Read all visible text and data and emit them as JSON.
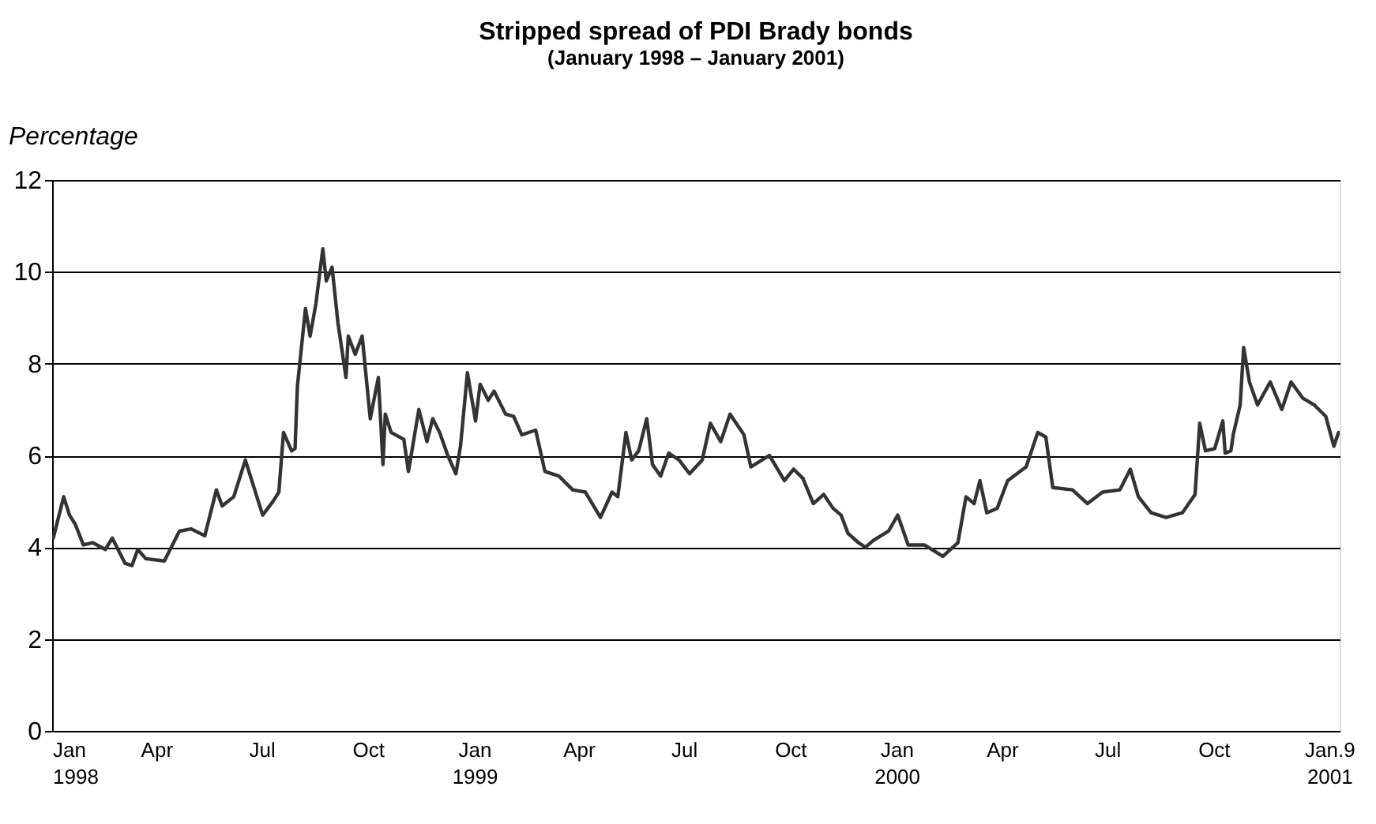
{
  "chart_data": {
    "type": "line",
    "title": "Stripped spread of PDI Brady bonds",
    "subtitle": "(January 1998 – January 2001)",
    "ylabel": "Percentage",
    "x": [
      "1998-01-02",
      "1998-01-11",
      "1998-01-16",
      "1998-01-21",
      "1998-01-28",
      "1998-02-05",
      "1998-02-16",
      "1998-02-22",
      "1998-03-05",
      "1998-03-11",
      "1998-03-16",
      "1998-03-23",
      "1998-04-08",
      "1998-04-21",
      "1998-05-01",
      "1998-05-13",
      "1998-05-23",
      "1998-05-28",
      "1998-06-07",
      "1998-06-17",
      "1998-07-02",
      "1998-07-11",
      "1998-07-16",
      "1998-07-20",
      "1998-07-27",
      "1998-07-30",
      "1998-08-01",
      "1998-08-08",
      "1998-08-12",
      "1998-08-17",
      "1998-08-23",
      "1998-08-26",
      "1998-08-31",
      "1998-09-05",
      "1998-09-12",
      "1998-09-14",
      "1998-09-20",
      "1998-09-26",
      "1998-10-03",
      "1998-10-10",
      "1998-10-14",
      "1998-10-16",
      "1998-10-21",
      "1998-11-01",
      "1998-11-05",
      "1998-11-14",
      "1998-11-21",
      "1998-11-26",
      "1998-12-02",
      "1998-12-09",
      "1998-12-16",
      "1998-12-20",
      "1998-12-26",
      "1999-01-02",
      "1999-01-06",
      "1999-01-13",
      "1999-01-18",
      "1999-01-28",
      "1999-02-04",
      "1999-02-11",
      "1999-02-23",
      "1999-03-03",
      "1999-03-15",
      "1999-03-27",
      "1999-04-07",
      "1999-04-20",
      "1999-04-30",
      "1999-05-05",
      "1999-05-12",
      "1999-05-17",
      "1999-05-23",
      "1999-05-30",
      "1999-06-04",
      "1999-06-11",
      "1999-06-18",
      "1999-06-27",
      "1999-07-06",
      "1999-07-17",
      "1999-07-24",
      "1999-08-02",
      "1999-08-10",
      "1999-08-22",
      "1999-08-28",
      "1999-09-13",
      "1999-09-26",
      "1999-10-04",
      "1999-10-12",
      "1999-10-21",
      "1999-10-30",
      "1999-11-07",
      "1999-11-14",
      "1999-11-20",
      "1999-11-29",
      "1999-12-05",
      "1999-12-12",
      "1999-12-25",
      "2000-01-02",
      "2000-01-11",
      "2000-01-25",
      "2000-02-10",
      "2000-02-23",
      "2000-03-01",
      "2000-03-08",
      "2000-03-13",
      "2000-03-19",
      "2000-03-28",
      "2000-04-06",
      "2000-04-22",
      "2000-05-02",
      "2000-05-09",
      "2000-05-15",
      "2000-06-01",
      "2000-06-14",
      "2000-06-27",
      "2000-07-12",
      "2000-07-21",
      "2000-07-28",
      "2000-08-08",
      "2000-08-21",
      "2000-09-04",
      "2000-09-15",
      "2000-09-19",
      "2000-09-24",
      "2000-10-02",
      "2000-10-09",
      "2000-10-11",
      "2000-10-16",
      "2000-10-18",
      "2000-10-24",
      "2000-10-27",
      "2000-11-01",
      "2000-11-08",
      "2000-11-19",
      "2000-11-29",
      "2000-12-07",
      "2000-12-17",
      "2000-12-27",
      "2001-01-06",
      "2001-01-13",
      "2001-01-17"
    ],
    "series": [
      {
        "color": "#333333",
        "values": [
          4.2,
          5.1,
          4.7,
          4.5,
          4.05,
          4.1,
          3.95,
          4.2,
          3.65,
          3.6,
          3.95,
          3.75,
          3.7,
          4.35,
          4.4,
          4.25,
          5.25,
          4.9,
          5.1,
          5.9,
          4.7,
          5.0,
          5.2,
          6.5,
          6.1,
          6.15,
          7.5,
          9.2,
          8.6,
          9.3,
          10.5,
          9.8,
          10.1,
          8.9,
          7.7,
          8.6,
          8.2,
          8.6,
          6.8,
          7.7,
          5.8,
          6.9,
          6.5,
          6.35,
          5.65,
          7.0,
          6.3,
          6.8,
          6.5,
          6.0,
          5.6,
          6.2,
          7.8,
          6.75,
          7.55,
          7.2,
          7.4,
          6.9,
          6.85,
          6.45,
          6.55,
          5.65,
          5.55,
          5.25,
          5.2,
          4.65,
          5.2,
          5.1,
          6.5,
          5.9,
          6.1,
          6.8,
          5.8,
          5.55,
          6.05,
          5.9,
          5.6,
          5.9,
          6.7,
          6.3,
          6.9,
          6.45,
          5.75,
          6.0,
          5.45,
          5.7,
          5.5,
          4.95,
          5.15,
          4.85,
          4.7,
          4.3,
          4.1,
          4.0,
          4.15,
          4.35,
          4.7,
          4.05,
          4.05,
          3.8,
          4.1,
          5.1,
          4.95,
          5.45,
          4.75,
          4.85,
          5.45,
          5.75,
          6.5,
          6.4,
          5.3,
          5.25,
          4.95,
          5.2,
          5.25,
          5.7,
          5.1,
          4.75,
          4.65,
          4.75,
          5.15,
          6.7,
          6.1,
          6.15,
          6.75,
          6.05,
          6.1,
          6.45,
          7.1,
          8.35,
          7.6,
          7.1,
          7.6,
          7.0,
          7.6,
          7.25,
          7.1,
          6.85,
          6.2,
          6.5
        ]
      }
    ],
    "xlim": [
      "1998-01-01",
      "2001-01-18"
    ],
    "xticks": [
      {
        "value": "1998-01-01",
        "label": "Jan 1998"
      },
      {
        "value": "1998-04-01",
        "label": "Apr"
      },
      {
        "value": "1998-07-01",
        "label": "Jul"
      },
      {
        "value": "1998-10-01",
        "label": "Oct"
      },
      {
        "value": "1999-01-01",
        "label": "Jan 1999"
      },
      {
        "value": "1999-04-01",
        "label": "Apr"
      },
      {
        "value": "1999-07-01",
        "label": "Jul"
      },
      {
        "value": "1999-10-01",
        "label": "Oct"
      },
      {
        "value": "2000-01-01",
        "label": "Jan 2000"
      },
      {
        "value": "2000-04-01",
        "label": "Apr"
      },
      {
        "value": "2000-07-01",
        "label": "Jul"
      },
      {
        "value": "2000-10-01",
        "label": "Oct"
      },
      {
        "value": "2001-01-09",
        "label": "Jan.9 2001"
      }
    ],
    "ylim": [
      0,
      12
    ],
    "yticks": [
      0,
      2,
      4,
      6,
      8,
      10,
      12
    ],
    "grid": "y",
    "line_style": "solid",
    "marker": "none",
    "legend": false
  }
}
